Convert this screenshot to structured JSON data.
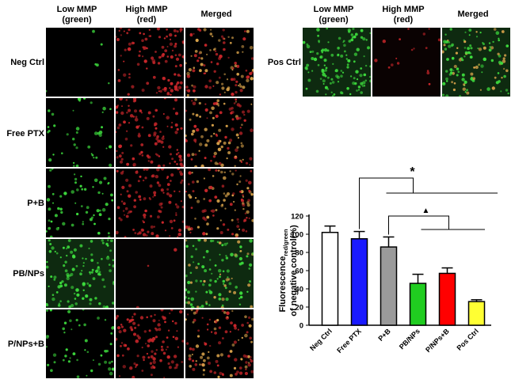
{
  "micrographs": {
    "columns": [
      "Low MMP\n(green)",
      "High MMP\n(red)",
      "Merged"
    ],
    "rows": [
      "Neg Ctrl",
      "Free PTX",
      "P+B",
      "PB/NPs",
      "P/NPs+B"
    ],
    "pos_ctrl_row": "Pos Ctrl",
    "colors": {
      "green": "#3ddc3d",
      "red": "#c8262a",
      "orange": "#d8a24a",
      "background": "#000000",
      "pbnps_bg": "#0e2a10"
    }
  },
  "chart_data": {
    "type": "bar",
    "categories": [
      "Neg Ctrl",
      "Free PTX",
      "P+B",
      "PB/NPs",
      "P/NPs+B",
      "Pos Ctrl"
    ],
    "values": [
      102,
      95,
      86,
      46,
      57,
      26
    ],
    "errors": [
      7,
      8,
      11,
      10,
      6,
      2
    ],
    "colors": [
      "#ffffff",
      "#1a1aff",
      "#9a9a9a",
      "#20cc20",
      "#ff0000",
      "#ffff33"
    ],
    "ylabel_main": "Fluorescence",
    "ylabel_sub": "red/green",
    "ylabel_line2": "of negative control(%)",
    "ylim": [
      0,
      120
    ],
    "yticks": [
      0,
      20,
      40,
      60,
      80,
      100,
      120
    ],
    "annotations": [
      "*",
      "▲"
    ]
  }
}
